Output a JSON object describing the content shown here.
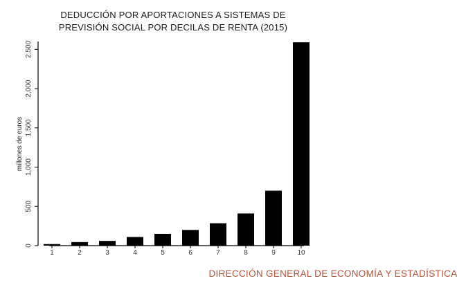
{
  "chart_data": {
    "type": "bar",
    "title_lines": [
      "DEDUCCIÓN POR APORTACIONES A SISTEMAS DE",
      "PREVISIÓN SOCIAL POR DECILAS DE RENTA (2015)"
    ],
    "xlabel": "",
    "ylabel": "millones de euros",
    "categories": [
      "1",
      "2",
      "3",
      "4",
      "5",
      "6",
      "7",
      "8",
      "9",
      "10"
    ],
    "values": [
      20,
      45,
      60,
      110,
      150,
      200,
      285,
      410,
      700,
      2590
    ],
    "ylim": [
      0,
      2600
    ],
    "yticks": [
      0,
      500,
      1000,
      1500,
      2000,
      2500
    ],
    "ytick_labels": [
      "0",
      "500",
      "1,000",
      "1,500",
      "2,000",
      "2,500"
    ],
    "bar_color": "#000000",
    "grid": false,
    "legend": "none"
  },
  "footer": {
    "source": "DIRECCIÓN GENERAL DE ECONOMÍA Y ESTADÍSTICA",
    "color": "#b5533a"
  }
}
